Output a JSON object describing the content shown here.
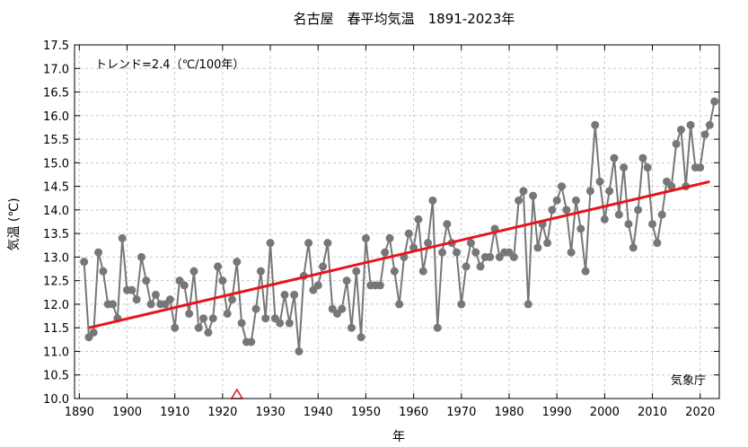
{
  "chart_data": {
    "type": "line",
    "title": "名古屋　春平均気温　1891-2023年",
    "xlabel": "年",
    "ylabel": "気温 (℃)",
    "xlim": [
      1889,
      2024
    ],
    "ylim": [
      10.0,
      17.5
    ],
    "xticks": [
      1890,
      1900,
      1910,
      1920,
      1930,
      1940,
      1950,
      1960,
      1970,
      1980,
      1990,
      2000,
      2010,
      2020
    ],
    "yticks": [
      10.0,
      10.5,
      11.0,
      11.5,
      12.0,
      12.5,
      13.0,
      13.5,
      14.0,
      14.5,
      15.0,
      15.5,
      16.0,
      16.5,
      17.0,
      17.5
    ],
    "grid": true,
    "trend_label": "トレンド=2.4（℃/100年）",
    "source_label": "気象庁",
    "colors": {
      "series": "#777777",
      "trend": "#e8141c",
      "marker": "#e8141c",
      "grid": "#c8c8c8"
    },
    "series": [
      {
        "x": [
          1891,
          1892,
          1893,
          1894,
          1895,
          1896,
          1897,
          1898,
          1899,
          1900,
          1901,
          1902,
          1903,
          1904,
          1905,
          1906,
          1907,
          1908,
          1909,
          1910,
          1911,
          1912,
          1913,
          1914,
          1915,
          1916,
          1917,
          1918,
          1919,
          1920,
          1921,
          1922,
          1923,
          1924,
          1925,
          1926,
          1927,
          1928,
          1929,
          1930,
          1931,
          1932,
          1933,
          1934,
          1935,
          1936,
          1937,
          1938,
          1939,
          1940,
          1941,
          1942,
          1943,
          1944,
          1945,
          1946,
          1947,
          1948,
          1949,
          1950,
          1951,
          1952,
          1953,
          1954,
          1955,
          1956,
          1957,
          1958,
          1959,
          1960,
          1961,
          1962,
          1963,
          1964,
          1965,
          1966,
          1967,
          1968,
          1969,
          1970,
          1971,
          1972,
          1973,
          1974,
          1975,
          1976,
          1977,
          1978,
          1979,
          1980,
          1981,
          1982,
          1983,
          1984,
          1985,
          1986,
          1987,
          1988,
          1989,
          1990,
          1991,
          1992,
          1993,
          1994,
          1995,
          1996,
          1997,
          1998,
          1999,
          2000,
          2001,
          2002,
          2003,
          2004,
          2005,
          2006,
          2007,
          2008,
          2009,
          2010,
          2011,
          2012,
          2013,
          2014,
          2015,
          2016,
          2017,
          2018,
          2019,
          2020,
          2021,
          2022,
          2023
        ],
        "values": [
          12.9,
          11.3,
          11.4,
          13.1,
          12.7,
          12.0,
          12.0,
          11.7,
          13.4,
          12.3,
          12.3,
          12.1,
          13.0,
          12.5,
          12.0,
          12.2,
          12.0,
          12.0,
          12.1,
          11.5,
          12.5,
          12.4,
          11.8,
          12.7,
          11.5,
          11.7,
          11.4,
          11.7,
          12.8,
          12.5,
          11.8,
          12.1,
          12.9,
          11.6,
          11.2,
          11.2,
          11.9,
          12.7,
          11.7,
          13.3,
          11.7,
          11.6,
          12.2,
          11.6,
          12.2,
          11.0,
          12.6,
          13.3,
          12.3,
          12.4,
          12.8,
          13.3,
          11.9,
          11.8,
          11.9,
          12.5,
          11.5,
          12.7,
          11.3,
          13.4,
          12.4,
          12.4,
          12.4,
          13.1,
          13.4,
          12.7,
          12.0,
          13.0,
          13.5,
          13.2,
          13.8,
          12.7,
          13.3,
          14.2,
          11.5,
          13.1,
          13.7,
          13.3,
          13.1,
          12.0,
          12.8,
          13.3,
          13.1,
          12.8,
          13.0,
          13.0,
          13.6,
          13.0,
          13.1,
          13.1,
          13.0,
          14.2,
          14.4,
          12.0,
          14.3,
          13.2,
          13.7,
          13.3,
          14.0,
          14.2,
          14.5,
          14.0,
          13.1,
          14.2,
          13.6,
          12.7,
          14.4,
          15.8,
          14.6,
          13.8,
          14.4,
          15.1,
          13.9,
          14.9,
          13.7,
          13.2,
          14.0,
          15.1,
          14.9,
          13.7,
          13.3,
          13.9,
          14.6,
          14.5,
          15.4,
          15.7,
          14.5,
          15.8,
          14.9,
          14.9,
          15.6,
          15.8,
          16.3
        ]
      }
    ],
    "trend": {
      "x": [
        1892,
        2022
      ],
      "values": [
        11.5,
        14.6
      ]
    },
    "marker": {
      "x": 1923,
      "value": 10.0,
      "shape": "triangle"
    }
  }
}
